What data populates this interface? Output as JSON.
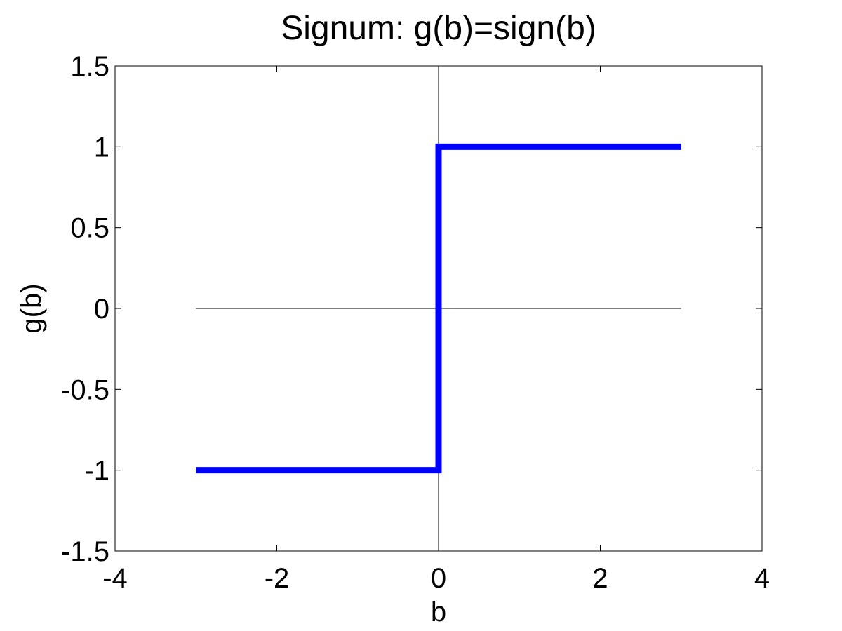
{
  "chart_data": {
    "type": "line",
    "title": "Signum: g(b)=sign(b)",
    "xlabel": "b",
    "ylabel": "g(b)",
    "xlim": [
      -4,
      4
    ],
    "ylim": [
      -1.5,
      1.5
    ],
    "xticks": [
      -4,
      -2,
      0,
      2,
      4
    ],
    "xtick_labels": [
      "-4",
      "-2",
      "0",
      "2",
      "4"
    ],
    "yticks": [
      -1.5,
      -1,
      -0.5,
      0,
      0.5,
      1,
      1.5
    ],
    "ytick_labels": [
      "-1.5",
      "-1",
      "-0.5",
      "0",
      "0.5",
      "1",
      "1.5"
    ],
    "grid": false,
    "reference_lines": {
      "horizontal": {
        "y": 0,
        "x_range": [
          -3,
          3
        ]
      },
      "vertical": {
        "x": 0,
        "y_range": [
          -1.5,
          1.5
        ]
      }
    },
    "series": [
      {
        "color": "#0000ff",
        "x": [
          -3,
          0,
          0,
          3
        ],
        "y": [
          -1,
          -1,
          1,
          1
        ]
      }
    ]
  }
}
